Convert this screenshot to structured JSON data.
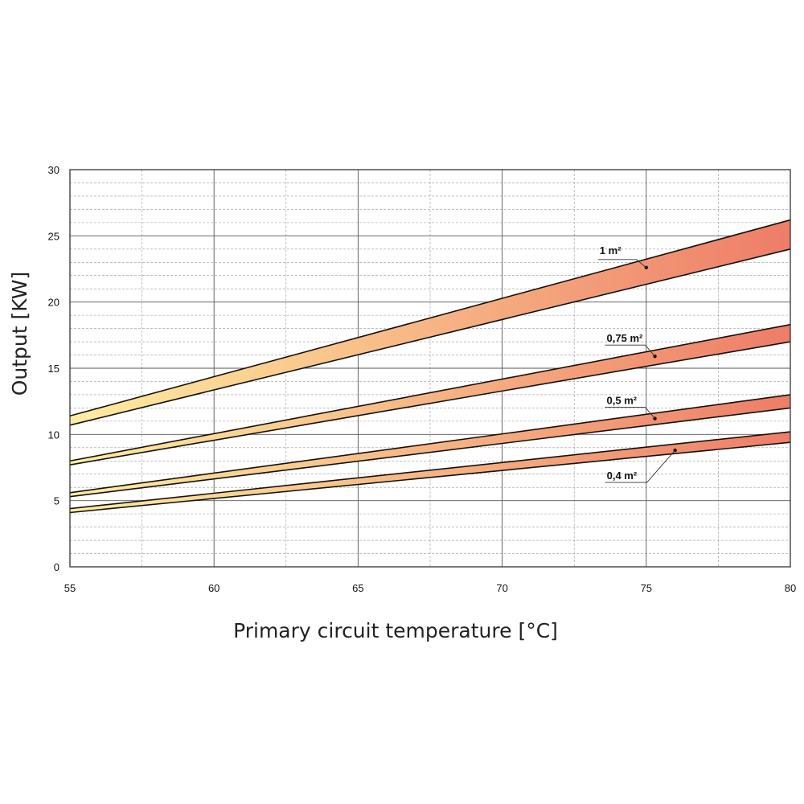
{
  "chart_data": {
    "type": "area",
    "xlabel": "Primary circuit temperature [°C]",
    "ylabel": "Output [KW]",
    "xlim": [
      55,
      80
    ],
    "ylim": [
      0,
      30
    ],
    "x_ticks": [
      "55",
      "60",
      "65",
      "70",
      "75",
      "80"
    ],
    "y_ticks": [
      "0",
      "5",
      "10",
      "15",
      "20",
      "25",
      "30"
    ],
    "grid": true,
    "colors": {
      "band_start": "#FFEDA0",
      "band_end": "#EE7D68",
      "edge": "#111111",
      "grid_major": "#555555",
      "grid_minor": "#999999"
    },
    "series": [
      {
        "name": "1 m²",
        "x": [
          55,
          80
        ],
        "upper": [
          11.4,
          26.2
        ],
        "lower": [
          10.7,
          24.0
        ],
        "label_at": [
          75,
          22.6
        ]
      },
      {
        "name": "0,75 m²",
        "x": [
          55,
          80
        ],
        "upper": [
          8.0,
          18.3
        ],
        "lower": [
          7.7,
          17.0
        ],
        "label_at": [
          75.3,
          15.9
        ]
      },
      {
        "name": "0,5 m²",
        "x": [
          55,
          80
        ],
        "upper": [
          5.6,
          13.0
        ],
        "lower": [
          5.3,
          12.0
        ],
        "label_at": [
          75.3,
          11.2
        ]
      },
      {
        "name": "0,4 m²",
        "x": [
          55,
          80
        ],
        "upper": [
          4.4,
          10.2
        ],
        "lower": [
          4.1,
          9.4
        ],
        "label_at": [
          76.0,
          8.8
        ]
      }
    ]
  }
}
